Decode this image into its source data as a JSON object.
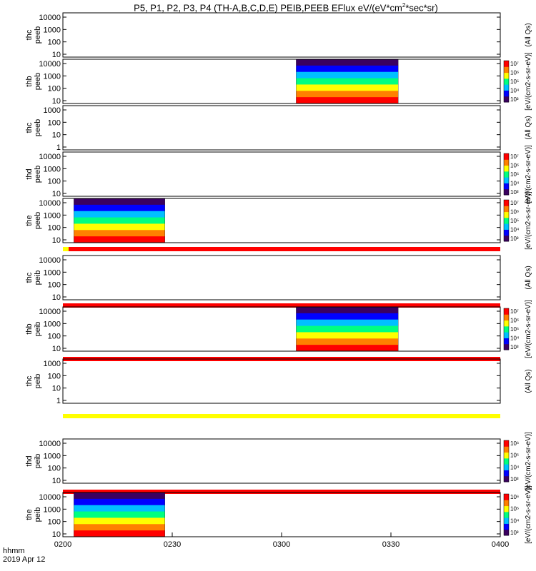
{
  "title_text": "P5, P1, P2, P3, P4 (TH-A,B,C,D,E) PEIB,PEEB EFlux eV/(eV*cm",
  "title_sup": "2",
  "title_tail": "*sec*sr)",
  "time_label": "hhmm",
  "date_label": "2019 Apr 12",
  "chart_data": {
    "type": "heatmap",
    "x_ticks": [
      "0200",
      "0230",
      "0300",
      "0330",
      "0400"
    ],
    "x_range": [
      "02:00",
      "04:00"
    ],
    "panels": [
      {
        "probe": "thc",
        "product": "peeb",
        "y_ticks": [
          "10",
          "100",
          "1000",
          "10000"
        ],
        "colorbar_ticks": [],
        "colorbar_label": "(All Qs)",
        "data_intervals": []
      },
      {
        "probe": "thb",
        "product": "peeb",
        "y_ticks": [
          "10",
          "100",
          "1000",
          "10000"
        ],
        "colorbar_ticks": [
          "10³",
          "10⁴",
          "10⁵",
          "10⁶",
          "10⁷"
        ],
        "colorbar_label": "[eV/(cm2-s-sr-eV)]",
        "data_intervals": [
          [
            "03:04",
            "03:32"
          ]
        ]
      },
      {
        "probe": "thc",
        "product": "peeb",
        "y_ticks": [
          "1",
          "10",
          "100",
          "1000"
        ],
        "colorbar_ticks": [],
        "colorbar_label": "(All Qs)",
        "data_intervals": []
      },
      {
        "probe": "thd",
        "product": "peeb",
        "y_ticks": [
          "10",
          "100",
          "1000",
          "10000"
        ],
        "colorbar_ticks": [
          "10³",
          "10⁴",
          "10⁵",
          "10⁶",
          "10⁷"
        ],
        "colorbar_label": "[eV/(cm2-s-sr-eV)]",
        "data_intervals": []
      },
      {
        "probe": "the",
        "product": "peeb",
        "y_ticks": [
          "10",
          "100",
          "1000",
          "10000"
        ],
        "colorbar_ticks": [
          "10³",
          "10⁴",
          "10⁵",
          "10⁶",
          "10⁷"
        ],
        "colorbar_label": "[eV/(cm2-s-sr-eV)]",
        "data_intervals": [
          [
            "02:03",
            "02:28"
          ]
        ]
      },
      {
        "probe": "thc",
        "product": "peib",
        "y_ticks": [
          "10",
          "100",
          "1000",
          "10000"
        ],
        "colorbar_ticks": [],
        "colorbar_label": "(All Qs)",
        "data_intervals": []
      },
      {
        "probe": "thb",
        "product": "peib",
        "y_ticks": [
          "10",
          "100",
          "1000",
          "10000"
        ],
        "colorbar_ticks": [
          "10³",
          "10⁴",
          "10⁵",
          "10⁶",
          "10⁷"
        ],
        "colorbar_label": "[eV/(cm2-s-sr-eV)]",
        "data_intervals": [
          [
            "03:04",
            "03:32"
          ]
        ]
      },
      {
        "probe": "thc",
        "product": "peib",
        "y_ticks": [
          "1",
          "10",
          "100",
          "1000"
        ],
        "colorbar_ticks": [],
        "colorbar_label": "(All Qs)",
        "data_intervals": []
      },
      {
        "probe": "thd",
        "product": "peib",
        "y_ticks": [
          "10",
          "100",
          "1000",
          "10000"
        ],
        "colorbar_ticks": [
          "10³",
          "10⁴",
          "10⁵",
          "10⁶"
        ],
        "colorbar_label": "[eV/(cm2-s-sr-eV)]",
        "data_intervals": []
      },
      {
        "probe": "the",
        "product": "peib",
        "y_ticks": [
          "10",
          "100",
          "1000",
          "10000"
        ],
        "colorbar_ticks": [
          "10³",
          "10⁴",
          "10⁵",
          "10⁶"
        ],
        "colorbar_label": "[eV/(cm2-s-sr-eV)]",
        "data_intervals": [
          [
            "02:03",
            "02:28"
          ]
        ]
      }
    ],
    "colormap": [
      "#3a0060",
      "#0000ff",
      "#00c0ff",
      "#00ff80",
      "#ffff00",
      "#ff8000",
      "#ff0000"
    ]
  }
}
